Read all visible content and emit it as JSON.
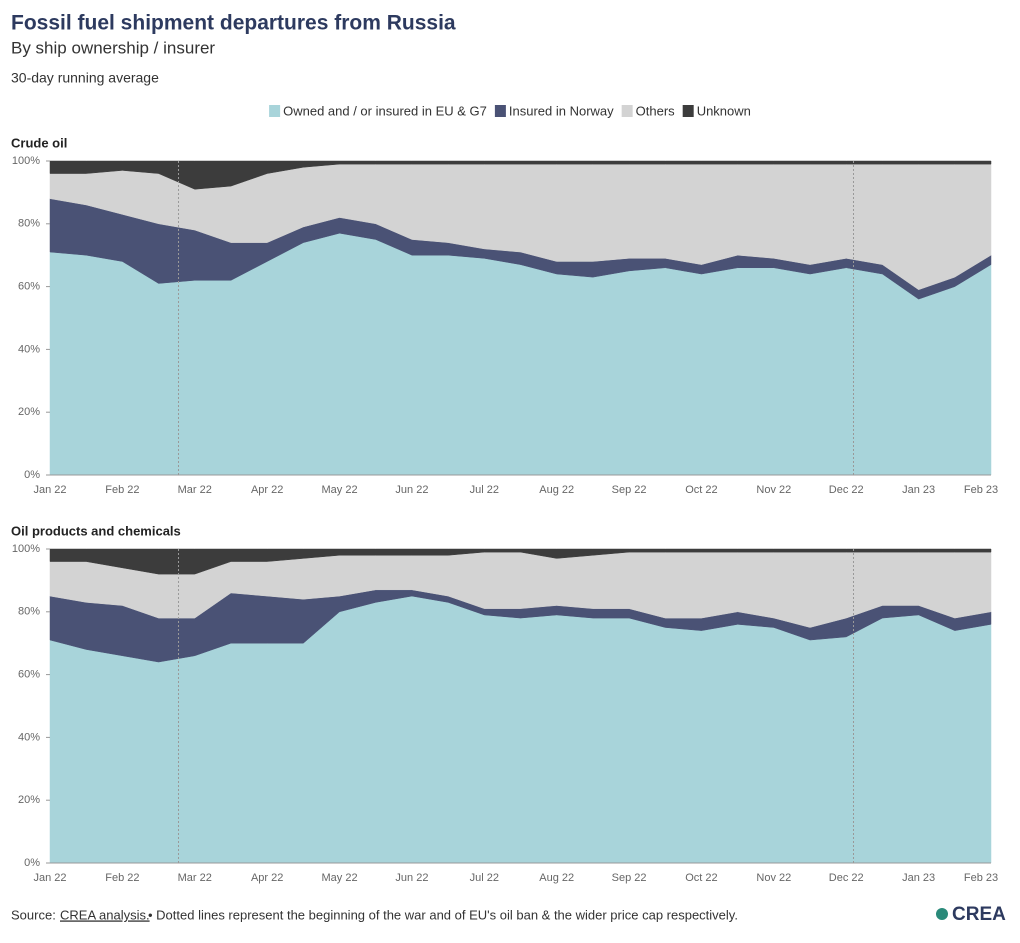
{
  "header": {
    "title": "Fossil fuel shipment departures from Russia",
    "subtitle": "By ship ownership / insurer",
    "note": "30-day running average"
  },
  "footer": {
    "source": "Source:",
    "link": "CREA analysis.",
    "text": "• Dotted lines represent the beginning of the war and of EU's oil ban & the wider price cap respectively.",
    "logo": "CREA"
  },
  "chart_data": [
    {
      "type": "area",
      "stacked": true,
      "title": "Crude oil",
      "categories": [
        "Jan 22",
        null,
        "Feb 22",
        null,
        "Mar 22",
        null,
        "Apr 22",
        null,
        "May 22",
        null,
        "Jun 22",
        null,
        "Jul 22",
        null,
        "Aug 22",
        null,
        "Sep 22",
        null,
        "Oct 22",
        null,
        "Nov 22",
        null,
        "Dec 22",
        null,
        "Jan 23",
        null,
        "Feb 23"
      ],
      "series": [
        {
          "name": "Owned and / or insured in EU & G7",
          "color": "#a8d4da",
          "values": [
            71,
            70,
            68,
            61,
            62,
            62,
            68,
            74,
            77,
            75,
            70,
            70,
            69,
            67,
            64,
            63,
            65,
            66,
            64,
            66,
            66,
            64,
            66,
            64,
            56,
            60,
            67
          ]
        },
        {
          "name": "Insured in Norway",
          "color": "#4a5275",
          "values": [
            17,
            16,
            15,
            19,
            16,
            12,
            6,
            5,
            5,
            5,
            5,
            4,
            3,
            4,
            4,
            5,
            4,
            3,
            3,
            4,
            3,
            3,
            3,
            3,
            3,
            3,
            3
          ]
        },
        {
          "name": "Others",
          "color": "#d3d3d3",
          "values": [
            8,
            10,
            14,
            16,
            13,
            18,
            22,
            19,
            17,
            19,
            24,
            25,
            27,
            28,
            31,
            31,
            30,
            30,
            32,
            29,
            30,
            32,
            30,
            32,
            40,
            36,
            29
          ]
        },
        {
          "name": "Unknown",
          "color": "#3c3c3c",
          "values": [
            4,
            4,
            3,
            4,
            9,
            8,
            4,
            2,
            1,
            1,
            1,
            1,
            1,
            1,
            1,
            1,
            1,
            1,
            1,
            1,
            1,
            1,
            1,
            1,
            1,
            1,
            1
          ]
        }
      ],
      "ylim": [
        0,
        100
      ],
      "yticks": [
        {
          "value": 0,
          "label": "0%"
        },
        {
          "value": 20,
          "label": "20%"
        },
        {
          "value": 40,
          "label": "40%"
        },
        {
          "value": 60,
          "label": "60%"
        },
        {
          "value": 80,
          "label": "80%"
        },
        {
          "value": 100,
          "label": "100%"
        }
      ]
    },
    {
      "type": "area",
      "stacked": true,
      "title": "Oil products and chemicals",
      "categories": [
        "Jan 22",
        null,
        "Feb 22",
        null,
        "Mar 22",
        null,
        "Apr 22",
        null,
        "May 22",
        null,
        "Jun 22",
        null,
        "Jul 22",
        null,
        "Aug 22",
        null,
        "Sep 22",
        null,
        "Oct 22",
        null,
        "Nov 22",
        null,
        "Dec 22",
        null,
        "Jan 23",
        null,
        "Feb 23"
      ],
      "series": [
        {
          "name": "Owned and / or insured in EU & G7",
          "color": "#a8d4da",
          "values": [
            71,
            68,
            66,
            64,
            66,
            70,
            70,
            70,
            80,
            83,
            85,
            83,
            79,
            78,
            79,
            78,
            78,
            75,
            74,
            76,
            75,
            71,
            72,
            78,
            79,
            74,
            76
          ]
        },
        {
          "name": "Insured in Norway",
          "color": "#4a5275",
          "values": [
            14,
            15,
            16,
            14,
            12,
            16,
            15,
            14,
            5,
            4,
            2,
            2,
            2,
            3,
            3,
            3,
            3,
            3,
            4,
            4,
            3,
            4,
            6,
            4,
            3,
            4,
            4
          ]
        },
        {
          "name": "Others",
          "color": "#d3d3d3",
          "values": [
            11,
            13,
            12,
            14,
            14,
            10,
            11,
            13,
            13,
            11,
            11,
            13,
            18,
            18,
            15,
            17,
            18,
            21,
            21,
            19,
            21,
            24,
            21,
            17,
            17,
            21,
            19
          ]
        },
        {
          "name": "Unknown",
          "color": "#3c3c3c",
          "values": [
            4,
            4,
            6,
            8,
            8,
            4,
            4,
            3,
            2,
            2,
            2,
            2,
            1,
            1,
            3,
            2,
            1,
            1,
            1,
            1,
            1,
            1,
            1,
            1,
            1,
            1,
            1
          ]
        }
      ],
      "ylim": [
        0,
        100
      ],
      "yticks": [
        {
          "value": 0,
          "label": "0%"
        },
        {
          "value": 20,
          "label": "20%"
        },
        {
          "value": 40,
          "label": "40%"
        },
        {
          "value": 60,
          "label": "60%"
        },
        {
          "value": 80,
          "label": "80%"
        },
        {
          "value": 100,
          "label": "100%"
        }
      ]
    }
  ]
}
